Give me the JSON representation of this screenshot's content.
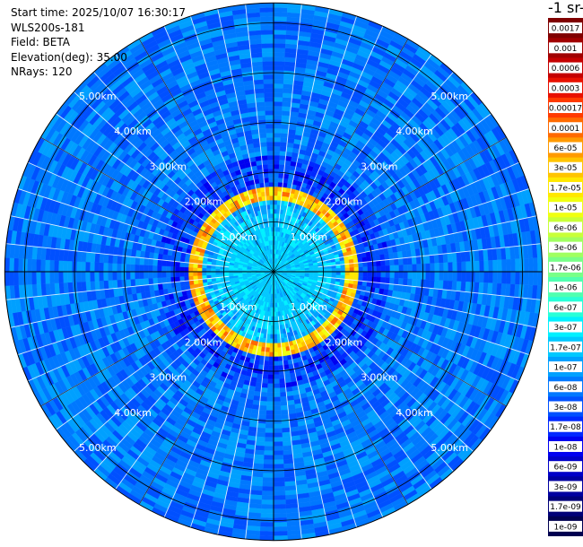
{
  "info": {
    "start_time": "Start time: 2025/10/07 16:30:17",
    "instrument": "WLS200s-181",
    "field": "Field: BETA",
    "elevation": "Elevation(deg): 35.00",
    "nrays": "NRays: 120"
  },
  "chart_data": {
    "type": "heatmap",
    "subtype": "polar-ppi",
    "nrays": 120,
    "range_rings_km": [
      1,
      2,
      3,
      4,
      5
    ],
    "ring_labels": [
      "1.00km",
      "2.00km",
      "3.00km",
      "4.00km",
      "5.00km"
    ],
    "max_range_km": 5.4,
    "colorbar_title_fragment": "-1 sr-",
    "colorbar": {
      "labels": [
        "0.0017",
        "0.001",
        "0.0006",
        "0.0003",
        "0.00017",
        "0.0001",
        "6e-05",
        "3e-05",
        "1.7e-05",
        "1e-05",
        "6e-06",
        "3e-06",
        "1.7e-06",
        "1e-06",
        "6e-07",
        "3e-07",
        "1.7e-07",
        "1e-07",
        "6e-08",
        "3e-08",
        "1.7e-08",
        "1e-08",
        "6e-09",
        "3e-09",
        "1.7e-09",
        "1e-09"
      ],
      "colors": [
        "#7f0000",
        "#a00000",
        "#c40000",
        "#e81000",
        "#ff3a00",
        "#ff6a00",
        "#ff9a00",
        "#ffc400",
        "#ffe800",
        "#f0ff10",
        "#c8ff38",
        "#a0ff60",
        "#78ff88",
        "#50ffb0",
        "#28ffd8",
        "#00f0ff",
        "#00c8ff",
        "#00a0ff",
        "#0078ff",
        "#0050ff",
        "#0028ff",
        "#0000f0",
        "#0000c8",
        "#0000a0",
        "#000078",
        "#000050"
      ]
    },
    "field_summary": {
      "inner_region_km": [
        0,
        1.2
      ],
      "inner_region_value": "1.7e-07",
      "shell_km": [
        1.35,
        1.75
      ],
      "shell_value": "3e-05",
      "outer_value": "6e-08"
    }
  }
}
